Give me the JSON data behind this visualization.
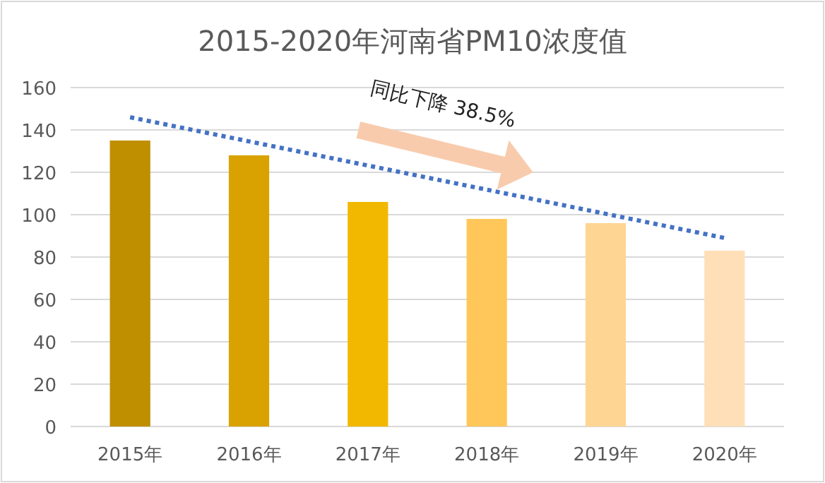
{
  "chart_data": {
    "type": "bar",
    "title": "2015-2020年河南省PM10浓度值",
    "categories": [
      "2015年",
      "2016年",
      "2017年",
      "2018年",
      "2019年",
      "2020年"
    ],
    "series": [
      {
        "colors": [
          "#bf8f00",
          "#d9a200",
          "#f2b800",
          "#ffc75a",
          "#ffd593",
          "#ffdfb8"
        ],
        "values": [
          135,
          128,
          106,
          98,
          96,
          83
        ]
      },
      {
        "type": "line",
        "x": [
          "2015年",
          "2020年"
        ],
        "values": [
          146,
          89
        ],
        "color": "#4472c4",
        "line_style": "dotted"
      }
    ],
    "ylim": [
      0,
      160
    ],
    "yticks": [
      0,
      20,
      40,
      60,
      80,
      100,
      120,
      140,
      160
    ],
    "grid": "y",
    "annotations": [
      "同比下降 38.5%"
    ]
  }
}
